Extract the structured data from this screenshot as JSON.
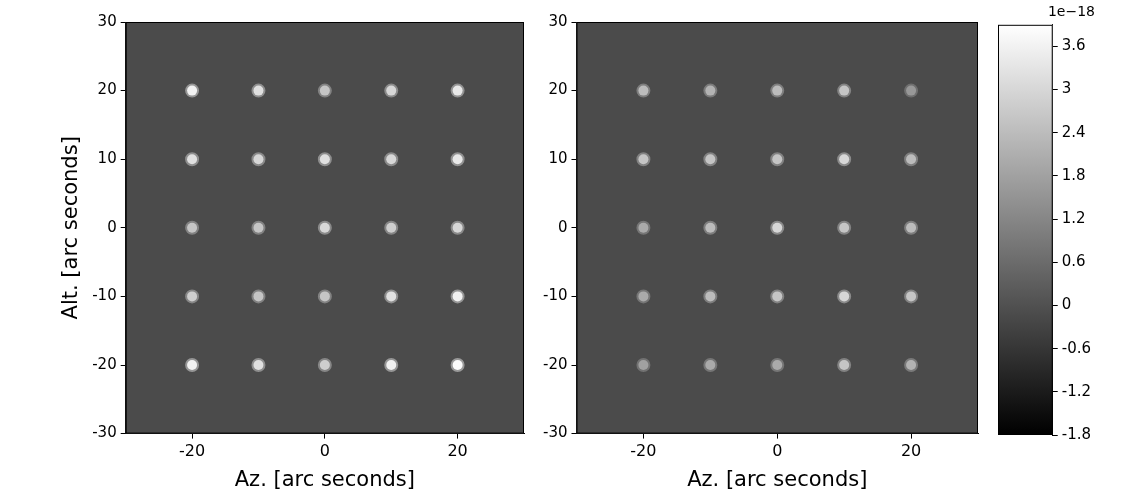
{
  "chart_data": {
    "type": "heatmap",
    "y_label": "Alt. [arc seconds]",
    "x_label": "Az. [arc seconds]",
    "xlim": [
      -30,
      30
    ],
    "xticks": [
      -20,
      0,
      20
    ],
    "ylim": [
      -30,
      30
    ],
    "yticks": [
      -30,
      -20,
      -10,
      0,
      10,
      20,
      30
    ],
    "x": [
      -20,
      -10,
      0,
      10,
      20
    ],
    "y": [
      20,
      10,
      0,
      -10,
      -20
    ],
    "panels": [
      {
        "cells": [
          [
            3.6,
            3.2,
            2.6,
            3.0,
            3.4
          ],
          [
            3.2,
            3.0,
            3.2,
            3.0,
            3.4
          ],
          [
            2.6,
            2.6,
            3.0,
            2.8,
            3.0
          ],
          [
            2.8,
            2.6,
            2.6,
            3.2,
            3.6
          ],
          [
            3.6,
            3.2,
            2.8,
            3.6,
            3.8
          ]
        ]
      },
      {
        "cells": [
          [
            2.4,
            2.2,
            2.4,
            2.6,
            1.6
          ],
          [
            2.6,
            2.6,
            2.6,
            3.0,
            2.4
          ],
          [
            2.0,
            2.4,
            3.0,
            2.6,
            2.4
          ],
          [
            2.0,
            2.4,
            2.6,
            3.0,
            2.6
          ],
          [
            1.8,
            2.0,
            2.0,
            2.6,
            2.2
          ]
        ]
      }
    ],
    "colorbar": {
      "label": "1e−18",
      "ylim": [
        -1.8,
        3.9
      ],
      "yticks": [
        -1.8,
        -1.2,
        -0.6,
        0.0,
        0.6,
        1.2,
        1.8,
        2.4,
        3.0,
        3.6
      ]
    }
  }
}
